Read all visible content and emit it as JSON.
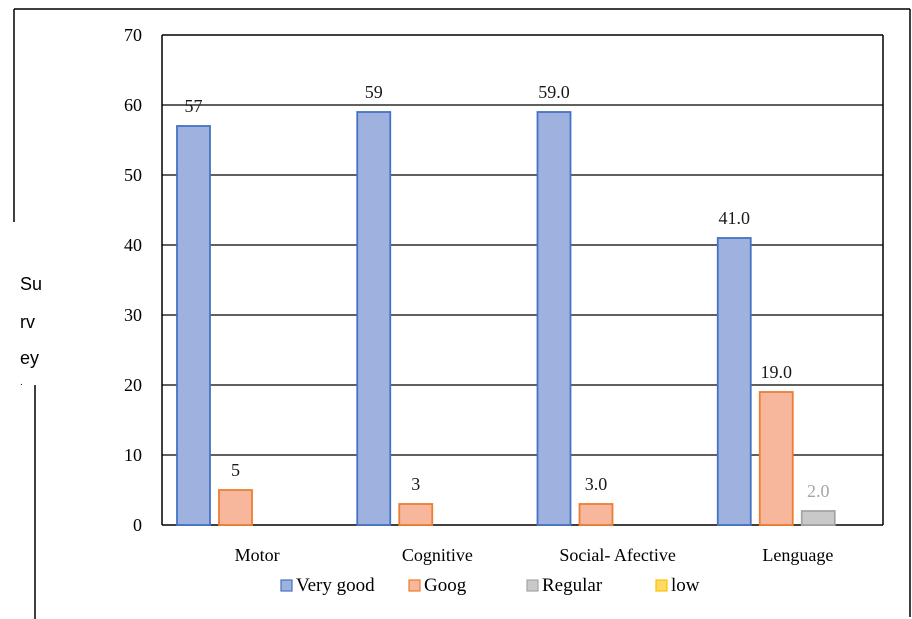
{
  "chart_data": {
    "type": "bar",
    "title": "",
    "xlabel": "",
    "ylabel_lines": [
      "Su",
      "rv",
      "ey",
      "."
    ],
    "categories": [
      "Motor",
      "Cognitive",
      "Social- Afective",
      "Lenguage"
    ],
    "series": [
      {
        "name": "Very good",
        "values": [
          57,
          59,
          59,
          41
        ],
        "labels": [
          "57",
          "59",
          "59.0",
          "41.0"
        ],
        "color": "#9fb1df",
        "border": "#4472c4",
        "label_color": "#1a1a1a"
      },
      {
        "name": "Goog",
        "values": [
          5,
          3,
          3,
          19
        ],
        "labels": [
          "5",
          "3",
          "3.0",
          "19.0"
        ],
        "color": "#f6b79c",
        "border": "#ed7d31",
        "label_color": "#1a1a1a"
      },
      {
        "name": "Regular",
        "values": [
          0,
          0,
          0,
          2
        ],
        "labels": [
          "",
          "",
          "",
          "2.0"
        ],
        "color": "#c9c9c9",
        "border": "#a5a5a5",
        "label_color": "#a5a5a5"
      },
      {
        "name": "low",
        "values": [
          0,
          0,
          0,
          0
        ],
        "labels": [
          "",
          "",
          "",
          ""
        ],
        "color": "#ffd966",
        "border": "#ffc000",
        "label_color": "#1a1a1a"
      }
    ],
    "ylim": [
      0,
      70
    ],
    "yticks": [
      0,
      10,
      20,
      30,
      40,
      50,
      60,
      70
    ],
    "grid": true,
    "legend": "bottom"
  }
}
